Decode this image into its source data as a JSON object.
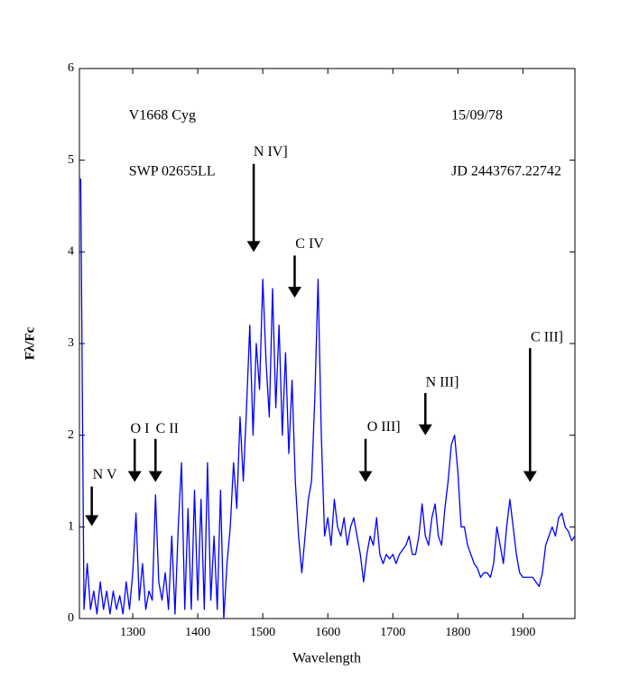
{
  "chart_data": {
    "type": "line",
    "x_label": "Wavelength",
    "y_label": "Fλ/Fc",
    "xlim": [
      1218,
      1980
    ],
    "ylim": [
      0,
      6
    ],
    "xticks": [
      1300,
      1400,
      1500,
      1600,
      1700,
      1800,
      1900
    ],
    "yticks": [
      0,
      1,
      2,
      3,
      4,
      5,
      6
    ],
    "grid": false,
    "x": [
      1220,
      1225,
      1230,
      1235,
      1240,
      1245,
      1250,
      1255,
      1260,
      1265,
      1270,
      1275,
      1280,
      1285,
      1290,
      1295,
      1300,
      1305,
      1310,
      1315,
      1320,
      1325,
      1330,
      1335,
      1340,
      1345,
      1350,
      1355,
      1360,
      1365,
      1370,
      1375,
      1380,
      1385,
      1390,
      1395,
      1400,
      1405,
      1410,
      1415,
      1420,
      1425,
      1430,
      1435,
      1440,
      1445,
      1450,
      1455,
      1460,
      1465,
      1470,
      1475,
      1480,
      1485,
      1490,
      1495,
      1500,
      1505,
      1510,
      1515,
      1520,
      1525,
      1530,
      1535,
      1540,
      1545,
      1550,
      1555,
      1560,
      1565,
      1570,
      1575,
      1580,
      1585,
      1590,
      1595,
      1600,
      1605,
      1610,
      1615,
      1620,
      1625,
      1630,
      1635,
      1640,
      1645,
      1650,
      1655,
      1660,
      1665,
      1670,
      1675,
      1680,
      1685,
      1690,
      1695,
      1700,
      1705,
      1710,
      1715,
      1720,
      1725,
      1730,
      1735,
      1740,
      1745,
      1750,
      1755,
      1760,
      1765,
      1770,
      1775,
      1780,
      1785,
      1790,
      1795,
      1800,
      1805,
      1810,
      1815,
      1820,
      1825,
      1830,
      1835,
      1840,
      1845,
      1850,
      1855,
      1860,
      1865,
      1870,
      1875,
      1880,
      1885,
      1890,
      1895,
      1900,
      1905,
      1910,
      1915,
      1920,
      1925,
      1930,
      1935,
      1940,
      1945,
      1950,
      1955,
      1960,
      1965,
      1970,
      1975,
      1980
    ],
    "series": [
      {
        "color": "#0000ff",
        "values": [
          4.8,
          0.1,
          0.6,
          0.1,
          0.3,
          0.05,
          0.4,
          0.1,
          0.3,
          0.05,
          0.3,
          0.1,
          0.25,
          0.05,
          0.4,
          0.1,
          0.5,
          1.15,
          0.2,
          0.6,
          0.1,
          0.3,
          0.2,
          1.35,
          0.4,
          0.2,
          0.5,
          0.1,
          0.9,
          0.05,
          1.0,
          1.7,
          0.1,
          1.2,
          0.1,
          1.4,
          0.2,
          1.3,
          0.1,
          1.7,
          0.2,
          0.9,
          0.1,
          1.4,
          0.0,
          0.6,
          1.0,
          1.7,
          1.2,
          2.2,
          1.5,
          2.3,
          3.2,
          2.0,
          3.0,
          2.5,
          3.7,
          2.8,
          2.2,
          3.6,
          2.3,
          3.2,
          2.0,
          2.9,
          1.8,
          2.6,
          1.5,
          0.9,
          0.5,
          0.9,
          1.3,
          1.5,
          2.4,
          3.7,
          2.0,
          0.9,
          1.1,
          0.8,
          1.3,
          1.0,
          0.9,
          1.1,
          0.8,
          1.0,
          1.1,
          0.9,
          0.7,
          0.4,
          0.7,
          0.9,
          0.8,
          1.1,
          0.7,
          0.6,
          0.7,
          0.65,
          0.7,
          0.6,
          0.7,
          0.75,
          0.8,
          0.9,
          0.7,
          0.7,
          0.9,
          1.25,
          0.9,
          0.8,
          1.1,
          1.25,
          0.9,
          0.8,
          1.2,
          1.5,
          1.9,
          2.0,
          1.6,
          1.0,
          1.0,
          0.8,
          0.7,
          0.6,
          0.55,
          0.45,
          0.5,
          0.5,
          0.45,
          0.6,
          1.0,
          0.8,
          0.6,
          1.0,
          1.3,
          1.0,
          0.7,
          0.5,
          0.45,
          0.45,
          0.45,
          0.45,
          0.4,
          0.35,
          0.5,
          0.8,
          0.9,
          1.0,
          0.9,
          1.1,
          1.15,
          1.0,
          0.95,
          0.85,
          0.9
        ]
      }
    ],
    "texts": [
      {
        "text": "V1668 Cyg",
        "x": 1294,
        "y": 5.48
      },
      {
        "text": "SWP 02655LL",
        "x": 1294,
        "y": 4.87
      },
      {
        "text": "15/09/78",
        "x": 1790,
        "y": 5.48
      },
      {
        "text": "JD 2443767.22742",
        "x": 1790,
        "y": 4.87
      }
    ],
    "annotations": [
      {
        "text": "N V",
        "x": 1237,
        "y": 1.01,
        "tail_y": 1.44,
        "text_x": 1257,
        "text_y": 1.56
      },
      {
        "text": "O I",
        "x": 1303,
        "y": 1.49,
        "tail_y": 1.96,
        "text_x": 1311,
        "text_y": 2.06
      },
      {
        "text": "C II",
        "x": 1335,
        "y": 1.49,
        "tail_y": 1.96,
        "text_x": 1353,
        "text_y": 2.06
      },
      {
        "text": "N IV]",
        "x": 1486,
        "y": 4.0,
        "tail_y": 4.96,
        "text_x": 1512,
        "text_y": 5.08
      },
      {
        "text": "C IV",
        "x": 1549,
        "y": 3.5,
        "tail_y": 3.96,
        "text_x": 1572,
        "text_y": 4.08
      },
      {
        "text": "O III]",
        "x": 1658,
        "y": 1.49,
        "tail_y": 1.96,
        "text_x": 1686,
        "text_y": 2.08
      },
      {
        "text": "N III]",
        "x": 1750,
        "y": 2.0,
        "tail_y": 2.46,
        "text_x": 1776,
        "text_y": 2.57
      },
      {
        "text": "C III]",
        "x": 1911,
        "y": 1.49,
        "tail_y": 2.95,
        "text_x": 1937,
        "text_y": 3.06
      }
    ]
  }
}
